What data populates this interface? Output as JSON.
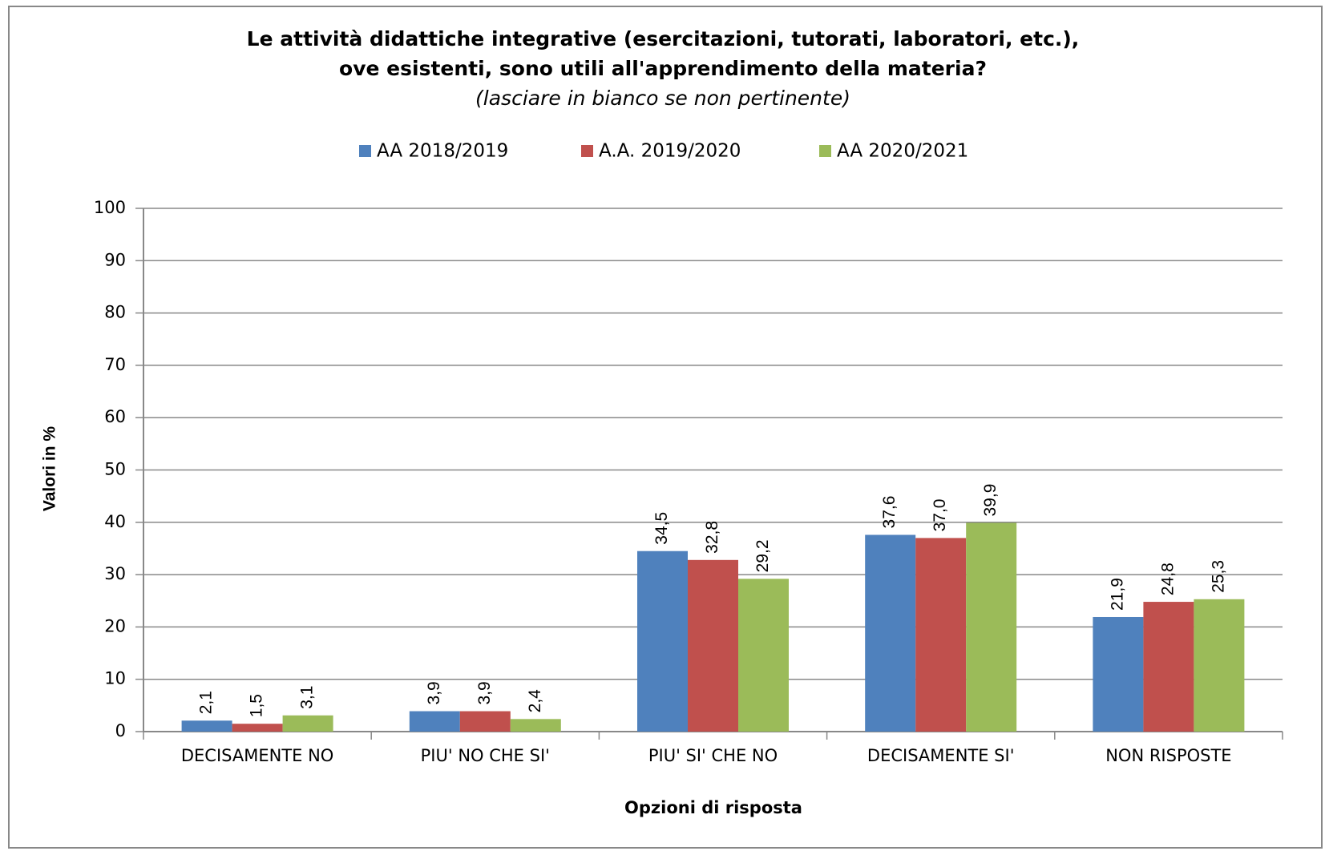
{
  "chart_data": {
    "type": "bar",
    "title": [
      "Le attività didattiche integrative (esercitazioni, tutorati, laboratori, etc.),",
      "ove esistenti, sono utili all'apprendimento della materia?"
    ],
    "subtitle": "(lasciare in bianco se non pertinente)",
    "x_label": "Opzioni di risposta",
    "y_label": "Valori in %",
    "categories": [
      "DECISAMENTE NO",
      "PIU' NO CHE SI'",
      "PIU' SI' CHE NO",
      "DECISAMENTE SI'",
      "NON RISPOSTE"
    ],
    "series": [
      {
        "name": "AA 2018/2019",
        "color": "#4f81bd",
        "values": [
          2.1,
          3.9,
          34.5,
          37.6,
          21.9
        ],
        "value_labels": [
          "2,1",
          "3,9",
          "34,5",
          "37,6",
          "21,9"
        ]
      },
      {
        "name": "A.A. 2019/2020",
        "color": "#c0504d",
        "values": [
          1.5,
          3.9,
          32.8,
          37.0,
          24.8
        ],
        "value_labels": [
          "1,5",
          "3,9",
          "32,8",
          "37,0",
          "24,8"
        ]
      },
      {
        "name": "AA 2020/2021",
        "color": "#9bbb59",
        "values": [
          3.1,
          2.4,
          29.2,
          39.9,
          25.3
        ],
        "value_labels": [
          "3,1",
          "2,4",
          "29,2",
          "39,9",
          "25,3"
        ]
      }
    ],
    "ylim": [
      0,
      100
    ],
    "yticks": [
      0,
      10,
      20,
      30,
      40,
      50,
      60,
      70,
      80,
      90,
      100
    ],
    "grid": true,
    "legend": "top"
  }
}
